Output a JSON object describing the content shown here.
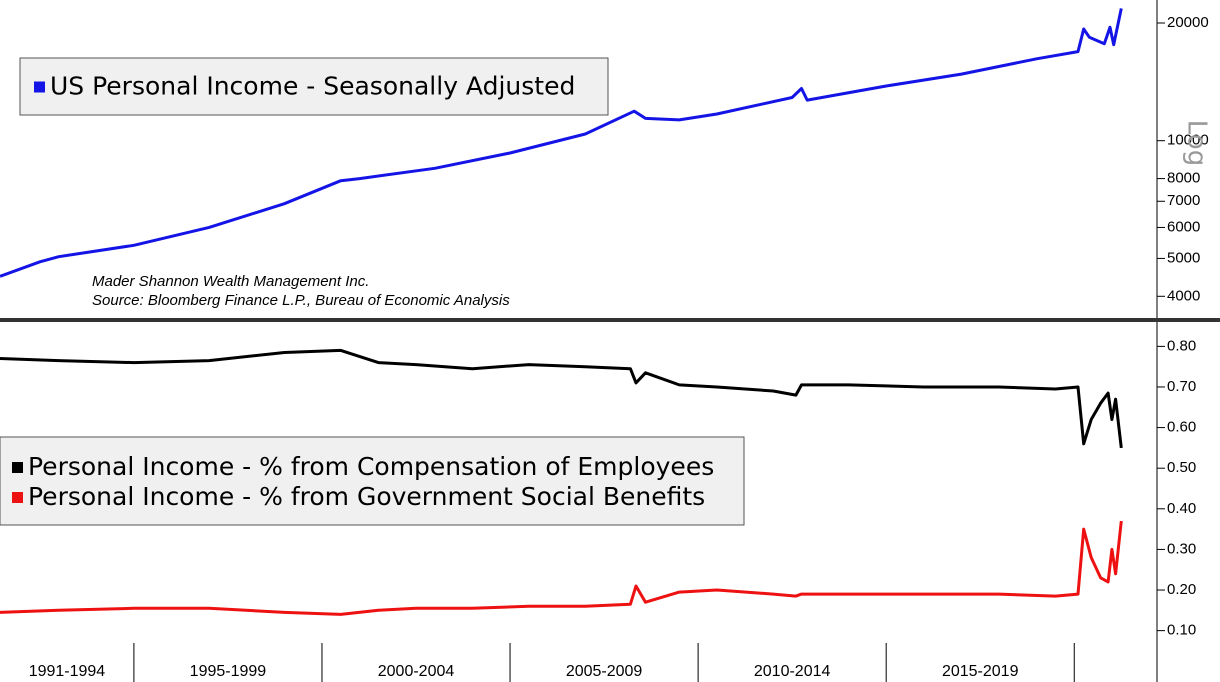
{
  "chart_data": [
    {
      "type": "line",
      "log": true,
      "xlim": [
        1991.44,
        2022.2
      ],
      "ylim": [
        3520,
        22900
      ],
      "yticks": [
        4000,
        5000,
        6000,
        7000,
        8000,
        10000,
        20000
      ],
      "axis_label": "Log",
      "annotations": [
        "Mader Shannon Wealth Management Inc.",
        "Source: Bloomberg Finance L.P., Bureau of Economic Analysis"
      ],
      "x": [
        1991.44,
        1992.5,
        1993,
        1995,
        1997,
        1999,
        2000.5,
        2001,
        2003,
        2005,
        2007,
        2008.3,
        2008.6,
        2009.5,
        2010.5,
        2012.5,
        2012.75,
        2012.9,
        2015,
        2017,
        2019,
        2020.1,
        2020.25,
        2020.4,
        2020.8,
        2020.95,
        2021.05,
        2021.25
      ],
      "series": [
        {
          "name": "US Personal Income - Seasonally Adjusted",
          "color": "#1414e6",
          "values": [
            4500,
            4900,
            5050,
            5400,
            6000,
            6900,
            7900,
            8000,
            8500,
            9300,
            10400,
            11900,
            11400,
            11300,
            11700,
            12900,
            13600,
            12700,
            13800,
            14800,
            16200,
            16900,
            19300,
            18400,
            17700,
            19500,
            17600,
            21800
          ]
        }
      ]
    },
    {
      "type": "line",
      "log": false,
      "xlim": [
        1991.44,
        2022.2
      ],
      "ylim": [
        0.04,
        0.86
      ],
      "yticks": [
        {
          "value": 0.1,
          "label": "0.10"
        },
        {
          "value": 0.2,
          "label": "0.20"
        },
        {
          "value": 0.3,
          "label": "0.30"
        },
        {
          "value": 0.4,
          "label": "0.40"
        },
        {
          "value": 0.5,
          "label": "0.50"
        },
        {
          "value": 0.6,
          "label": "0.60"
        },
        {
          "value": 0.7,
          "label": "0.70"
        },
        {
          "value": 0.8,
          "label": "0.80"
        }
      ],
      "xticks": [
        1995,
        2000,
        2005,
        2010,
        2015,
        2020
      ],
      "categories": [
        "1991-1994",
        "1995-1999",
        "2000-2004",
        "2005-2009",
        "2010-2014",
        "2015-2019",
        null
      ],
      "x": [
        1991.44,
        1993,
        1995,
        1997,
        1999,
        2000.5,
        2001.5,
        2002.5,
        2004,
        2005.5,
        2007,
        2008.2,
        2008.35,
        2008.6,
        2009.5,
        2010.5,
        2012,
        2012.6,
        2012.75,
        2014,
        2016,
        2018,
        2019.5,
        2020.1,
        2020.25,
        2020.45,
        2020.7,
        2020.9,
        2021.0,
        2021.1,
        2021.25
      ],
      "series": [
        {
          "name": "Personal Income - % from Compensation of Employees",
          "color": "#000000",
          "values": [
            0.77,
            0.765,
            0.76,
            0.765,
            0.785,
            0.79,
            0.76,
            0.755,
            0.745,
            0.755,
            0.75,
            0.745,
            0.71,
            0.735,
            0.705,
            0.7,
            0.69,
            0.68,
            0.705,
            0.705,
            0.7,
            0.7,
            0.695,
            0.7,
            0.56,
            0.62,
            0.66,
            0.685,
            0.62,
            0.67,
            0.55
          ]
        },
        {
          "name": "Personal Income - % from Government Social Benefits",
          "color": "#ee1111",
          "values": [
            0.145,
            0.15,
            0.155,
            0.155,
            0.145,
            0.14,
            0.15,
            0.155,
            0.155,
            0.16,
            0.16,
            0.165,
            0.21,
            0.17,
            0.195,
            0.2,
            0.19,
            0.185,
            0.19,
            0.19,
            0.19,
            0.19,
            0.185,
            0.19,
            0.35,
            0.28,
            0.23,
            0.22,
            0.3,
            0.24,
            0.37
          ]
        }
      ]
    }
  ]
}
